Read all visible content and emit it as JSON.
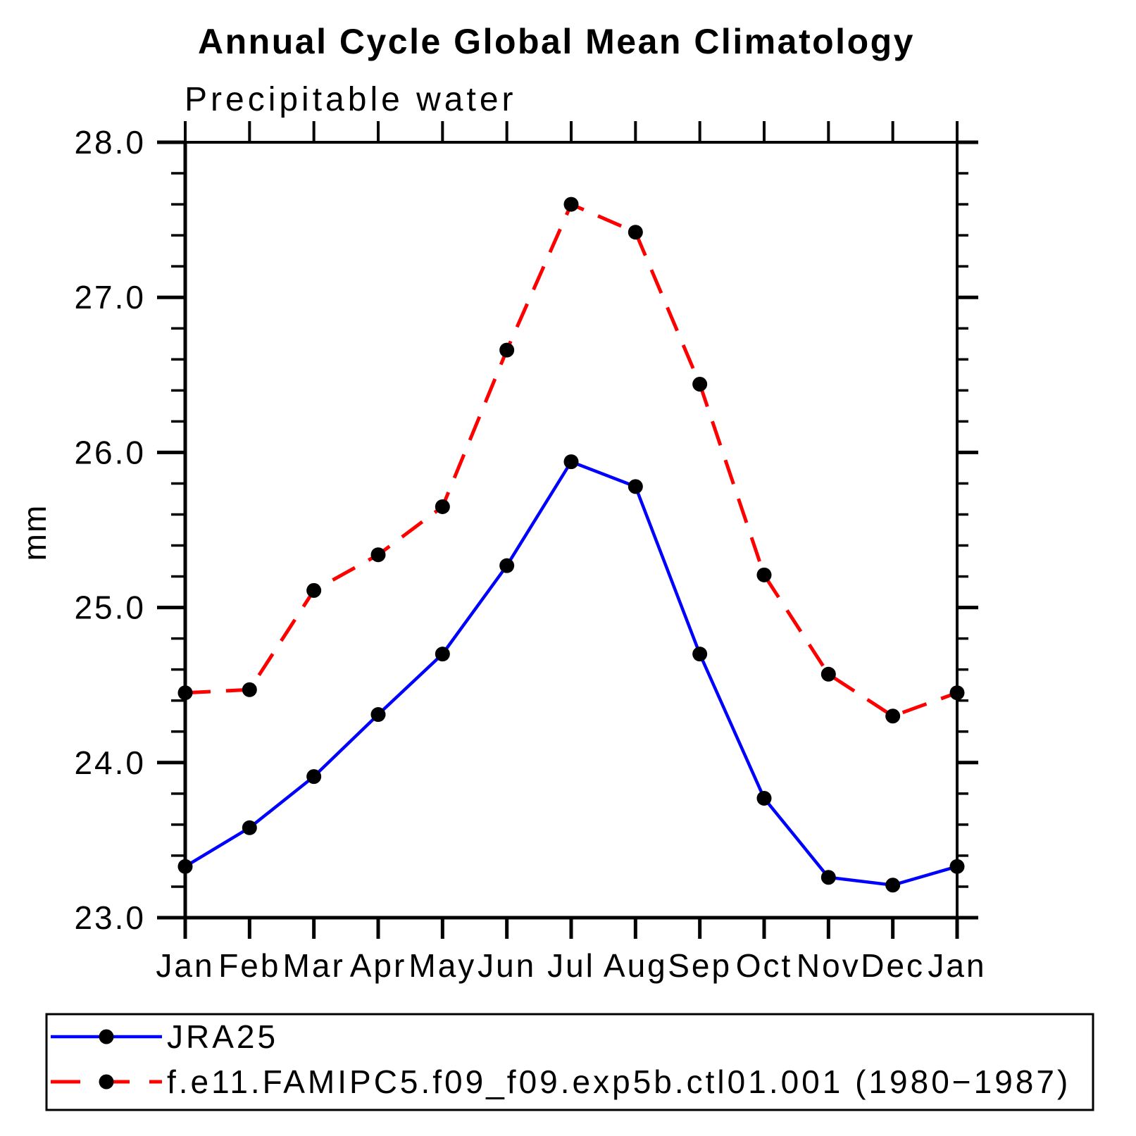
{
  "chart_data": {
    "type": "line",
    "title": "Annual Cycle Global Mean Climatology",
    "subtitle": "Precipitable water",
    "ylabel": "mm",
    "categories": [
      "Jan",
      "Feb",
      "Mar",
      "Apr",
      "May",
      "Jun",
      "Jul",
      "Aug",
      "Sep",
      "Oct",
      "Nov",
      "Dec",
      "Jan"
    ],
    "ylim": [
      23.0,
      28.0
    ],
    "ytick_labels": [
      "23.0",
      "24.0",
      "25.0",
      "26.0",
      "27.0",
      "28.0"
    ],
    "ytick_major": [
      23.0,
      24.0,
      25.0,
      26.0,
      27.0,
      28.0
    ],
    "ytick_minor_step": 0.2,
    "grid": false,
    "legend_position": "bottom-box",
    "axis_color": "#000000",
    "marker_color": "#000000",
    "series": [
      {
        "name": "JRA25",
        "color": "#0000ff",
        "style": "solid",
        "marker": "circle",
        "values": [
          23.33,
          23.58,
          23.91,
          24.31,
          24.7,
          25.27,
          25.94,
          25.78,
          24.7,
          23.77,
          23.26,
          23.21,
          23.33
        ]
      },
      {
        "name": "f.e11.FAMIPC5.f09_f09.exp5b.ctl01.001 (1980−1987)",
        "color": "#ff0000",
        "style": "dashed",
        "marker": "circle",
        "values": [
          24.45,
          24.47,
          25.11,
          25.34,
          25.65,
          26.66,
          27.6,
          27.42,
          26.44,
          25.21,
          24.57,
          24.3,
          24.45
        ]
      }
    ]
  }
}
